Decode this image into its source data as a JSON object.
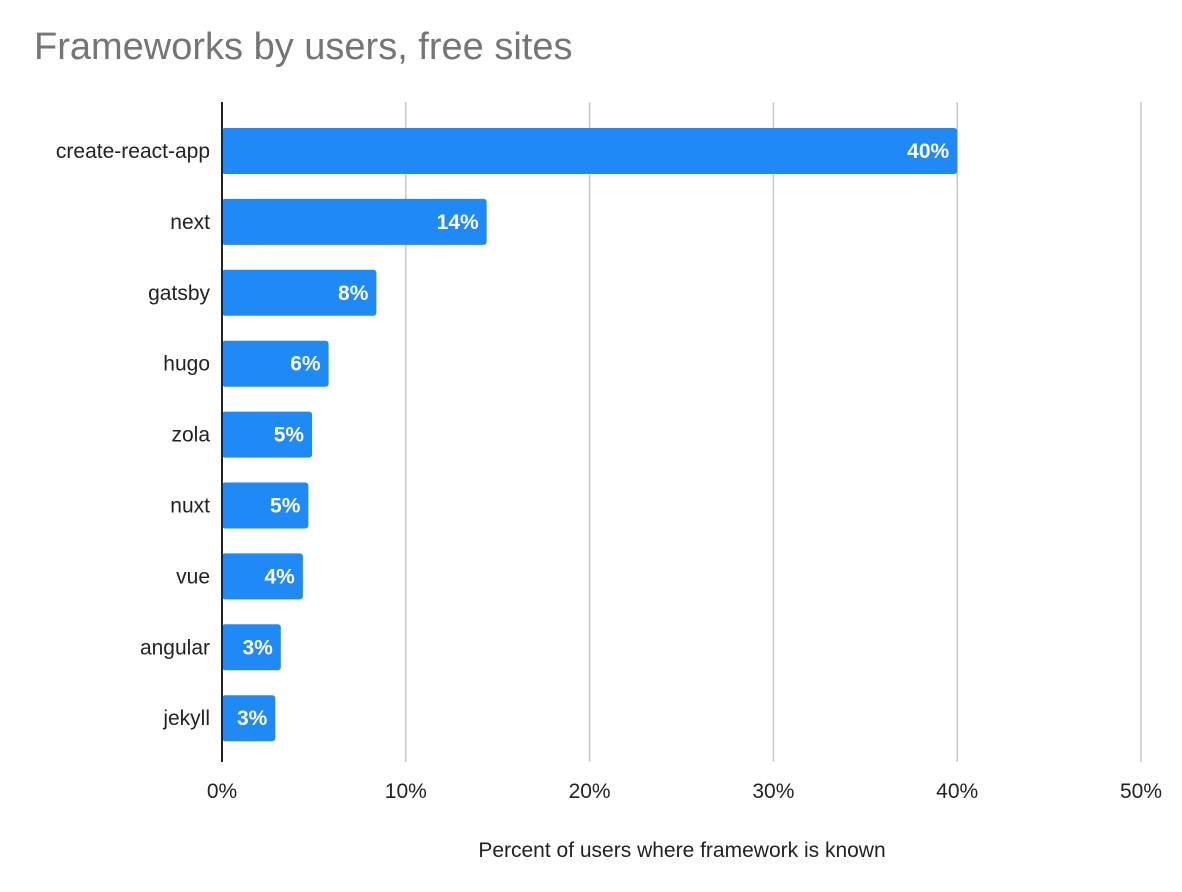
{
  "chart_data": {
    "type": "bar",
    "orientation": "horizontal",
    "title": "Frameworks by users, free sites",
    "xlabel": "Percent of users where framework is known",
    "ylabel": "",
    "categories": [
      "create-react-app",
      "next",
      "gatsby",
      "hugo",
      "zola",
      "nuxt",
      "vue",
      "angular",
      "jekyll"
    ],
    "values": [
      40,
      14.4,
      8.4,
      5.8,
      4.9,
      4.7,
      4.4,
      3.2,
      2.9
    ],
    "data_labels": [
      "40%",
      "14%",
      "8%",
      "6%",
      "5%",
      "5%",
      "4%",
      "3%",
      "3%"
    ],
    "xlim": [
      0,
      50
    ],
    "x_ticks": [
      0,
      10,
      20,
      30,
      40,
      50
    ],
    "x_tick_labels": [
      "0%",
      "10%",
      "20%",
      "30%",
      "40%",
      "50%"
    ],
    "grid": "vertical",
    "legend": "none",
    "colors": {
      "bar": "#1f8af5",
      "grid": "#c8c8c8",
      "axis": "#222222",
      "title": "#757575"
    }
  }
}
